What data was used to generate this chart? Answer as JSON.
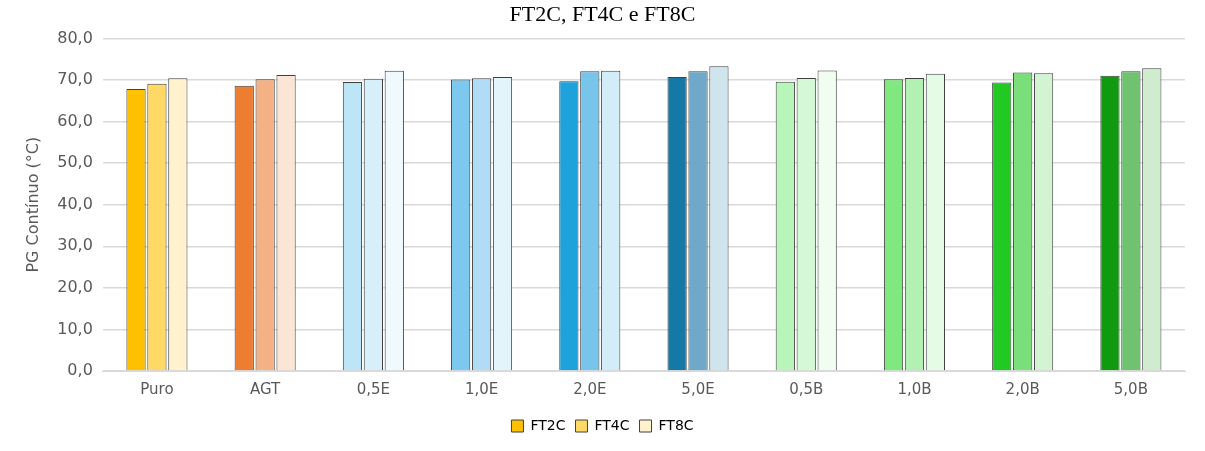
{
  "chart_data": {
    "type": "bar",
    "title": "FT2C, FT4C e FT8C",
    "ylabel": "PG Contínuo (°C)",
    "categories": [
      "Puro",
      "AGT",
      "0,5E",
      "1,0E",
      "2,0E",
      "5,0E",
      "0,5B",
      "1,0B",
      "2,0B",
      "5,0B"
    ],
    "series": [
      {
        "name": "FT2C",
        "color": "#ffc000",
        "colors": [
          "#ffc000",
          "#ed7d31",
          "#bde5f8",
          "#7cc8ef",
          "#1da2dc",
          "#1579a8",
          "#b8f5b8",
          "#7fe87f",
          "#22c922",
          "#0f9a0f"
        ],
        "values": [
          67.8,
          68.6,
          69.5,
          70.1,
          69.7,
          70.7,
          69.6,
          70.2,
          69.4,
          71.0
        ]
      },
      {
        "name": "FT4C",
        "color": "#ffd966",
        "colors": [
          "#ffd966",
          "#f4b183",
          "#d7effb",
          "#b0dcf5",
          "#77c5ea",
          "#6fa8c8",
          "#d4f9d4",
          "#b2f1b2",
          "#7adf7a",
          "#6fc26f"
        ],
        "values": [
          69.1,
          70.2,
          70.3,
          70.4,
          72.1,
          72.1,
          70.5,
          70.5,
          71.8,
          72.1
        ]
      },
      {
        "name": "FT8C",
        "color": "#fff2cc",
        "colors": [
          "#fff2cc",
          "#fbe5d6",
          "#f0f9fd",
          "#e4f4fb",
          "#d2edf8",
          "#d0e4ee",
          "#f0fdf0",
          "#e5fbe5",
          "#d3f4d3",
          "#cfeccf"
        ],
        "values": [
          70.4,
          71.2,
          72.2,
          70.7,
          72.2,
          73.3,
          72.3,
          71.5,
          71.6,
          72.8
        ]
      }
    ],
    "ylim": [
      0,
      80
    ],
    "yticks": [
      {
        "value": 0,
        "label": "0,0"
      },
      {
        "value": 10,
        "label": "10,0"
      },
      {
        "value": 20,
        "label": "20,0"
      },
      {
        "value": 30,
        "label": "30,0"
      },
      {
        "value": 40,
        "label": "40,0"
      },
      {
        "value": 50,
        "label": "50,0"
      },
      {
        "value": 60,
        "label": "60,0"
      },
      {
        "value": 70,
        "label": "70,0"
      },
      {
        "value": 80,
        "label": "80,0"
      }
    ],
    "grid": "y",
    "legend": "bottom"
  }
}
